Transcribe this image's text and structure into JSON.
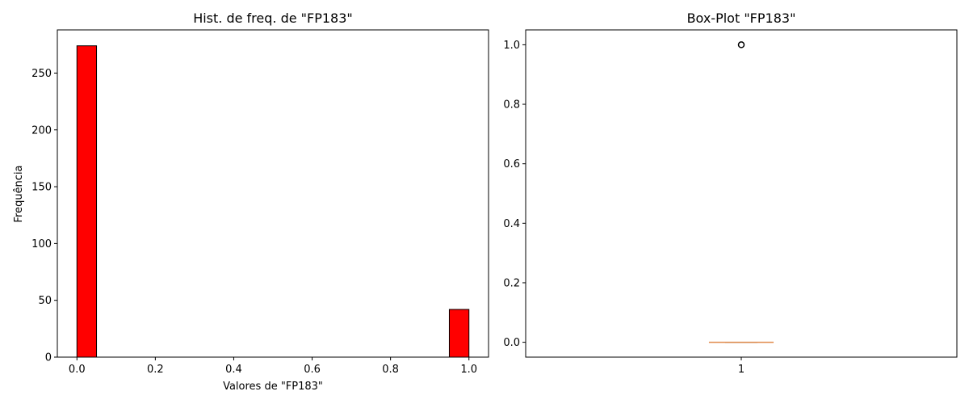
{
  "chart_data": [
    {
      "type": "bar",
      "subtype": "histogram",
      "title": "Hist. de freq. de \"FP183\"",
      "xlabel": "Valores de \"FP183\"",
      "ylabel": "Frequência",
      "bins": [
        {
          "x0": 0.0,
          "x1": 0.05,
          "count": 274
        },
        {
          "x0": 0.95,
          "x1": 1.0,
          "count": 42
        }
      ],
      "xlim": [
        -0.05,
        1.05
      ],
      "ylim": [
        0,
        288
      ],
      "xticks": [
        0.0,
        0.2,
        0.4,
        0.6,
        0.8,
        1.0
      ],
      "xtick_labels": [
        "0.0",
        "0.2",
        "0.4",
        "0.6",
        "0.8",
        "1.0"
      ],
      "yticks": [
        0,
        50,
        100,
        150,
        200,
        250
      ],
      "ytick_labels": [
        "0",
        "50",
        "100",
        "150",
        "200",
        "250"
      ],
      "bar_color": "#ff0000",
      "edge_color": "#000000",
      "grid": false
    },
    {
      "type": "box",
      "title": "Box-Plot \"FP183\"",
      "xlabel": "",
      "ylabel": "",
      "categories": [
        "1"
      ],
      "category_positions": [
        1
      ],
      "box": {
        "min": 0.0,
        "q1": 0.0,
        "median": 0.0,
        "q3": 0.0,
        "max": 0.0,
        "outliers": [
          1.0
        ]
      },
      "xlim": [
        0.5,
        1.5
      ],
      "ylim": [
        -0.05,
        1.05
      ],
      "yticks": [
        0.0,
        0.2,
        0.4,
        0.6,
        0.8,
        1.0
      ],
      "ytick_labels": [
        "0.0",
        "0.2",
        "0.4",
        "0.6",
        "0.8",
        "1.0"
      ],
      "median_color": "#e08a4a",
      "grid": false
    }
  ]
}
